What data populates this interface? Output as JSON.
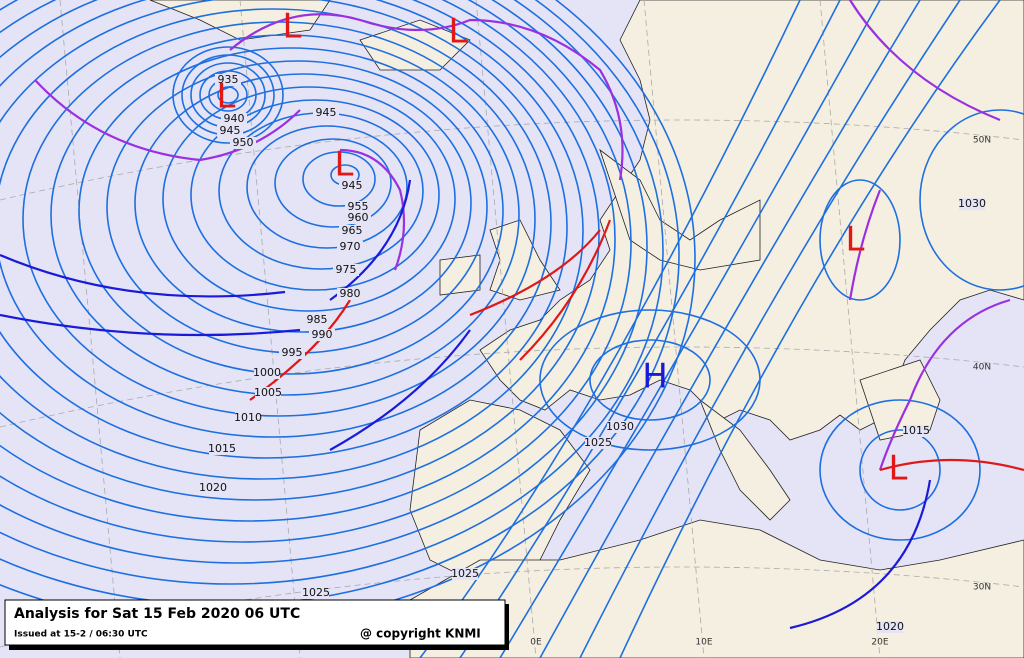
{
  "header": {
    "title": "Analysis for Sat 15 Feb 2020 06 UTC",
    "issued": "Issued at 15-2 / 06:30 UTC",
    "copyright": "@ copyright KNMI"
  },
  "isobar_labels": [
    "935",
    "940",
    "945",
    "950",
    "945",
    "945",
    "955",
    "960",
    "965",
    "970",
    "975",
    "980",
    "985",
    "990",
    "995",
    "1000",
    "1005",
    "1010",
    "1015",
    "1020",
    "1025",
    "1025",
    "1025",
    "1030",
    "1030",
    "1015",
    "1020"
  ],
  "centers": [
    "L",
    "L",
    "L",
    "L",
    "L",
    "L",
    "H"
  ],
  "graticule_labels": [
    "50N",
    "40N",
    "30N",
    "0E",
    "10E",
    "20E"
  ]
}
